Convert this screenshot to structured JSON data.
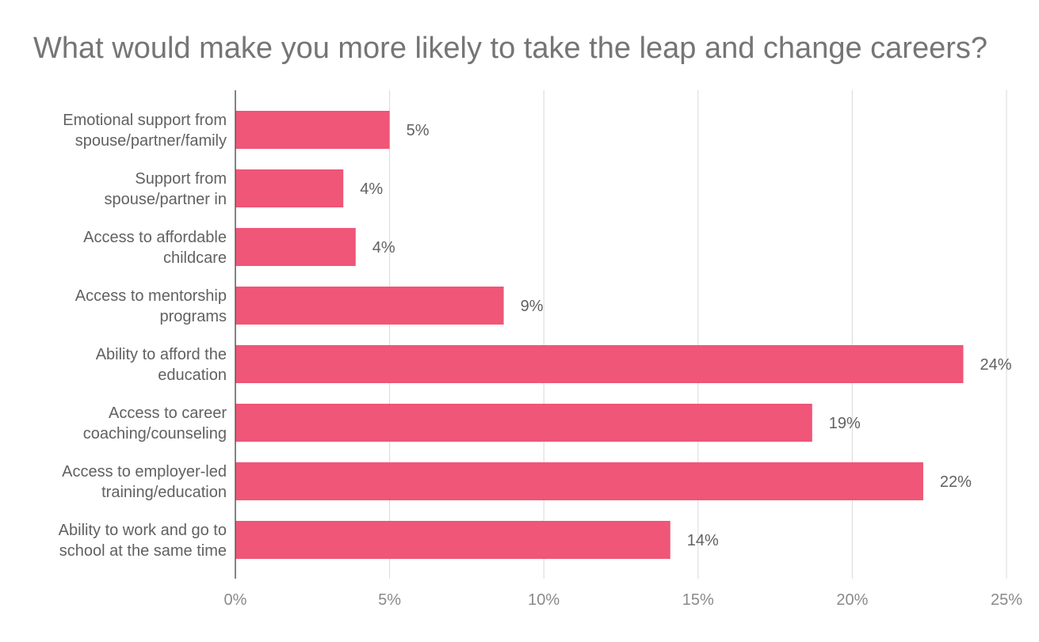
{
  "chart_data": {
    "type": "bar",
    "orientation": "horizontal",
    "title": "What would make you more likely to take the leap and change careers?",
    "categories": [
      [
        "Emotional support from",
        "spouse/partner/family"
      ],
      [
        "Support from",
        "spouse/partner in"
      ],
      [
        "Access to affordable",
        "childcare"
      ],
      [
        "Access to mentorship",
        "programs"
      ],
      [
        "Ability to afford the",
        "education"
      ],
      [
        "Access to career",
        "coaching/counseling"
      ],
      [
        "Access to employer-led",
        "training/education"
      ],
      [
        "Ability to work and go to",
        "school at the same time"
      ]
    ],
    "values": [
      5.0,
      3.5,
      3.9,
      8.7,
      23.6,
      18.7,
      22.3,
      14.1
    ],
    "value_labels": [
      "5%",
      "4%",
      "4%",
      "9%",
      "24%",
      "19%",
      "22%",
      "14%"
    ],
    "xlim": [
      0,
      25
    ],
    "xticks": [
      0,
      5,
      10,
      15,
      20,
      25
    ],
    "xtick_labels": [
      "0%",
      "5%",
      "10%",
      "15%",
      "20%",
      "25%"
    ],
    "xlabel": "",
    "ylabel": "",
    "bar_color": "#ef5677",
    "grid": true,
    "legend": "none"
  }
}
